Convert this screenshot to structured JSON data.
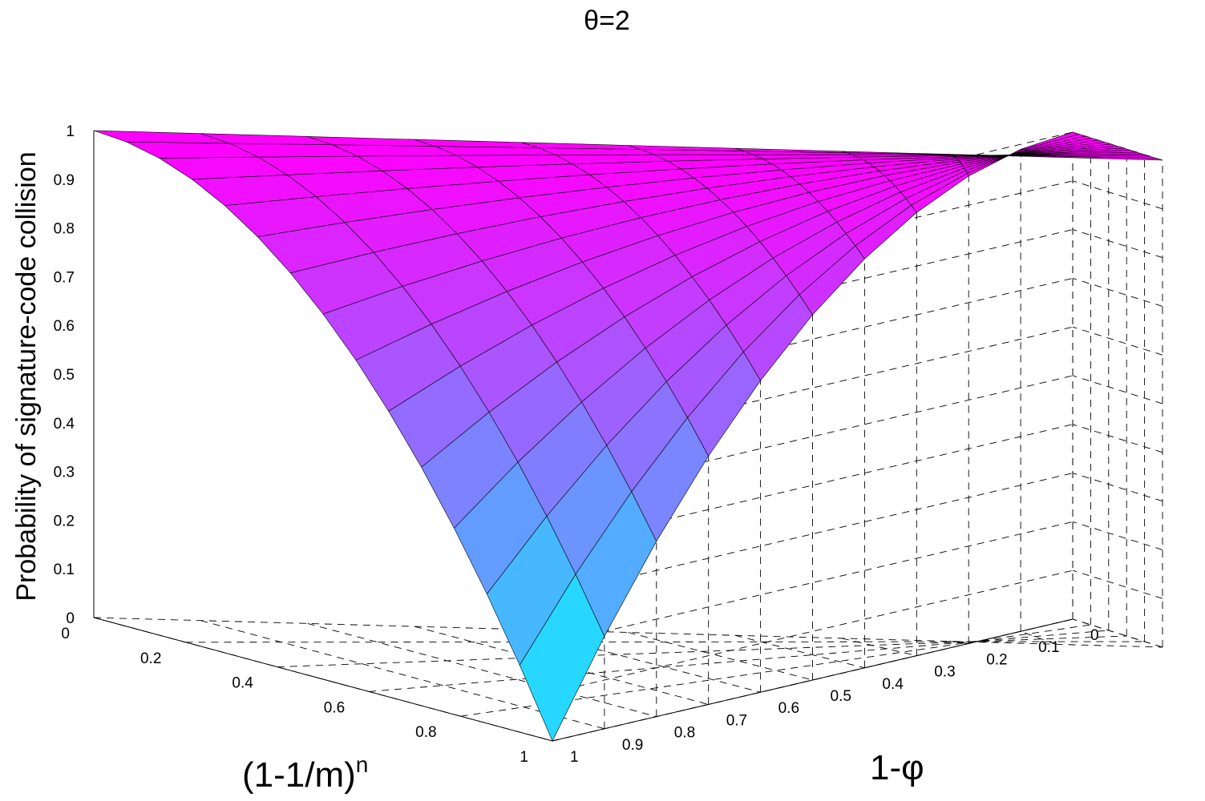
{
  "chart_data": {
    "type": "surface",
    "title": "θ=2",
    "xlabel_base": "(1-1/m)",
    "xlabel_sup": "n",
    "ylabel": "1-φ",
    "zlabel": "Probability of signature-code collision",
    "x": {
      "range": [
        0,
        1
      ],
      "ticks": [
        "0",
        "0.2",
        "0.4",
        "0.6",
        "0.8",
        "1"
      ],
      "tick_values": [
        0,
        0.2,
        0.4,
        0.6,
        0.8,
        1
      ]
    },
    "y": {
      "range": [
        0,
        1
      ],
      "ticks": [
        "0",
        "0.1",
        "0.2",
        "0.3",
        "0.4",
        "0.5",
        "0.6",
        "0.7",
        "0.8",
        "0.9",
        "1"
      ],
      "tick_values": [
        0,
        0.1,
        0.2,
        0.3,
        0.4,
        0.5,
        0.6,
        0.7,
        0.8,
        0.9,
        1
      ]
    },
    "z": {
      "range": [
        0,
        1
      ],
      "ticks": [
        "0",
        "0.1",
        "0.2",
        "0.3",
        "0.4",
        "0.5",
        "0.6",
        "0.7",
        "0.8",
        "0.9",
        "1"
      ],
      "tick_values": [
        0,
        0.1,
        0.2,
        0.3,
        0.4,
        0.5,
        0.6,
        0.7,
        0.8,
        0.9,
        1
      ]
    },
    "surface": {
      "formula": "z = 1 - (x*y)^2",
      "grid_x": [
        0,
        0.0714,
        0.1429,
        0.2143,
        0.2857,
        0.3571,
        0.4286,
        0.5,
        0.5714,
        0.6429,
        0.7143,
        0.7857,
        0.8571,
        0.9286,
        1
      ],
      "grid_y": [
        0,
        0.1,
        0.2,
        0.3,
        0.4,
        0.5,
        0.6,
        0.7,
        0.8,
        0.9,
        1
      ]
    },
    "colormap": {
      "low": "#00ffff",
      "high": "#ff00ff"
    },
    "grid": true,
    "box": "dashed"
  }
}
